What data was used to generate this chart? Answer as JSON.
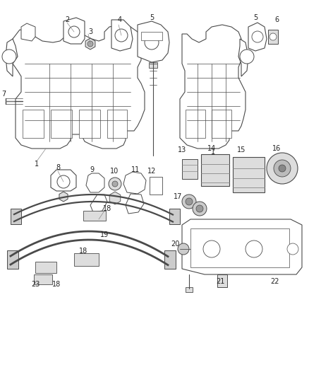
{
  "bg_color": "#ffffff",
  "line_color": "#4a4a4a",
  "lw": 0.7,
  "fig_width": 4.38,
  "fig_height": 5.33,
  "dpi": 100
}
